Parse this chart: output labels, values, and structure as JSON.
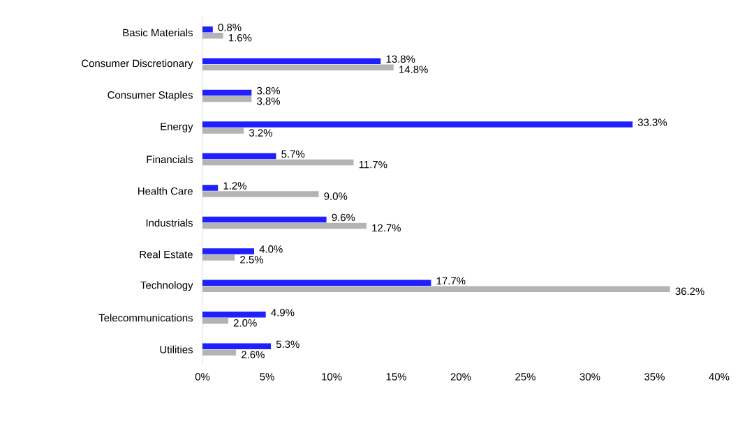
{
  "chart_data": {
    "type": "bar",
    "orientation": "horizontal",
    "categories": [
      "Basic Materials",
      "Consumer Discretionary",
      "Consumer Staples",
      "Energy",
      "Financials",
      "Health Care",
      "Industrials",
      "Real Estate",
      "Technology",
      "Telecommunications",
      "Utilities"
    ],
    "series": [
      {
        "color": "#1f1fff",
        "values": [
          0.8,
          13.8,
          3.8,
          33.3,
          5.7,
          1.2,
          9.6,
          4.0,
          17.7,
          4.9,
          5.3
        ],
        "value_labels": [
          "0.8%",
          "13.8%",
          "3.8%",
          "33.3%",
          "5.7%",
          "1.2%",
          "9.6%",
          "4.0%",
          "17.7%",
          "4.9%",
          "5.3%"
        ]
      },
      {
        "color": "#b4b4b4",
        "values": [
          1.6,
          14.8,
          3.8,
          3.2,
          11.7,
          9.0,
          12.7,
          2.5,
          36.2,
          2.0,
          2.6
        ],
        "value_labels": [
          "1.6%",
          "14.8%",
          "3.8%",
          "3.2%",
          "11.7%",
          "9.0%",
          "12.7%",
          "2.5%",
          "36.2%",
          "2.0%",
          "2.6%"
        ]
      }
    ],
    "xlim": [
      0,
      40
    ],
    "xticks": [
      {
        "value": 0,
        "label": "0%"
      },
      {
        "value": 5,
        "label": "5%"
      },
      {
        "value": 10,
        "label": "10%"
      },
      {
        "value": 15,
        "label": "15%"
      },
      {
        "value": 20,
        "label": "20%"
      },
      {
        "value": 25,
        "label": "25%"
      },
      {
        "value": 30,
        "label": "30%"
      },
      {
        "value": 35,
        "label": "35%"
      },
      {
        "value": 40,
        "label": "40%"
      }
    ]
  }
}
